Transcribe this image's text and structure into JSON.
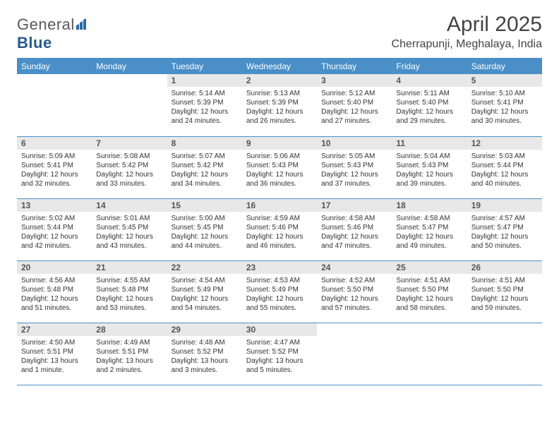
{
  "logo": {
    "text1": "General",
    "text2": "Blue"
  },
  "title": "April 2025",
  "location": "Cherrapunji, Meghalaya, India",
  "colors": {
    "accent": "#4a8fc7",
    "header_stripe": "#e8e8e8",
    "text": "#333333",
    "logo_gray": "#5a5a5a",
    "logo_blue": "#2a5a8a"
  },
  "weekdays": [
    "Sunday",
    "Monday",
    "Tuesday",
    "Wednesday",
    "Thursday",
    "Friday",
    "Saturday"
  ],
  "weeks": [
    [
      {
        "empty": true
      },
      {
        "empty": true
      },
      {
        "num": "1",
        "sunrise": "Sunrise: 5:14 AM",
        "sunset": "Sunset: 5:39 PM",
        "daylight": "Daylight: 12 hours and 24 minutes."
      },
      {
        "num": "2",
        "sunrise": "Sunrise: 5:13 AM",
        "sunset": "Sunset: 5:39 PM",
        "daylight": "Daylight: 12 hours and 26 minutes."
      },
      {
        "num": "3",
        "sunrise": "Sunrise: 5:12 AM",
        "sunset": "Sunset: 5:40 PM",
        "daylight": "Daylight: 12 hours and 27 minutes."
      },
      {
        "num": "4",
        "sunrise": "Sunrise: 5:11 AM",
        "sunset": "Sunset: 5:40 PM",
        "daylight": "Daylight: 12 hours and 29 minutes."
      },
      {
        "num": "5",
        "sunrise": "Sunrise: 5:10 AM",
        "sunset": "Sunset: 5:41 PM",
        "daylight": "Daylight: 12 hours and 30 minutes."
      }
    ],
    [
      {
        "num": "6",
        "sunrise": "Sunrise: 5:09 AM",
        "sunset": "Sunset: 5:41 PM",
        "daylight": "Daylight: 12 hours and 32 minutes."
      },
      {
        "num": "7",
        "sunrise": "Sunrise: 5:08 AM",
        "sunset": "Sunset: 5:42 PM",
        "daylight": "Daylight: 12 hours and 33 minutes."
      },
      {
        "num": "8",
        "sunrise": "Sunrise: 5:07 AM",
        "sunset": "Sunset: 5:42 PM",
        "daylight": "Daylight: 12 hours and 34 minutes."
      },
      {
        "num": "9",
        "sunrise": "Sunrise: 5:06 AM",
        "sunset": "Sunset: 5:43 PM",
        "daylight": "Daylight: 12 hours and 36 minutes."
      },
      {
        "num": "10",
        "sunrise": "Sunrise: 5:05 AM",
        "sunset": "Sunset: 5:43 PM",
        "daylight": "Daylight: 12 hours and 37 minutes."
      },
      {
        "num": "11",
        "sunrise": "Sunrise: 5:04 AM",
        "sunset": "Sunset: 5:43 PM",
        "daylight": "Daylight: 12 hours and 39 minutes."
      },
      {
        "num": "12",
        "sunrise": "Sunrise: 5:03 AM",
        "sunset": "Sunset: 5:44 PM",
        "daylight": "Daylight: 12 hours and 40 minutes."
      }
    ],
    [
      {
        "num": "13",
        "sunrise": "Sunrise: 5:02 AM",
        "sunset": "Sunset: 5:44 PM",
        "daylight": "Daylight: 12 hours and 42 minutes."
      },
      {
        "num": "14",
        "sunrise": "Sunrise: 5:01 AM",
        "sunset": "Sunset: 5:45 PM",
        "daylight": "Daylight: 12 hours and 43 minutes."
      },
      {
        "num": "15",
        "sunrise": "Sunrise: 5:00 AM",
        "sunset": "Sunset: 5:45 PM",
        "daylight": "Daylight: 12 hours and 44 minutes."
      },
      {
        "num": "16",
        "sunrise": "Sunrise: 4:59 AM",
        "sunset": "Sunset: 5:46 PM",
        "daylight": "Daylight: 12 hours and 46 minutes."
      },
      {
        "num": "17",
        "sunrise": "Sunrise: 4:58 AM",
        "sunset": "Sunset: 5:46 PM",
        "daylight": "Daylight: 12 hours and 47 minutes."
      },
      {
        "num": "18",
        "sunrise": "Sunrise: 4:58 AM",
        "sunset": "Sunset: 5:47 PM",
        "daylight": "Daylight: 12 hours and 49 minutes."
      },
      {
        "num": "19",
        "sunrise": "Sunrise: 4:57 AM",
        "sunset": "Sunset: 5:47 PM",
        "daylight": "Daylight: 12 hours and 50 minutes."
      }
    ],
    [
      {
        "num": "20",
        "sunrise": "Sunrise: 4:56 AM",
        "sunset": "Sunset: 5:48 PM",
        "daylight": "Daylight: 12 hours and 51 minutes."
      },
      {
        "num": "21",
        "sunrise": "Sunrise: 4:55 AM",
        "sunset": "Sunset: 5:48 PM",
        "daylight": "Daylight: 12 hours and 53 minutes."
      },
      {
        "num": "22",
        "sunrise": "Sunrise: 4:54 AM",
        "sunset": "Sunset: 5:49 PM",
        "daylight": "Daylight: 12 hours and 54 minutes."
      },
      {
        "num": "23",
        "sunrise": "Sunrise: 4:53 AM",
        "sunset": "Sunset: 5:49 PM",
        "daylight": "Daylight: 12 hours and 55 minutes."
      },
      {
        "num": "24",
        "sunrise": "Sunrise: 4:52 AM",
        "sunset": "Sunset: 5:50 PM",
        "daylight": "Daylight: 12 hours and 57 minutes."
      },
      {
        "num": "25",
        "sunrise": "Sunrise: 4:51 AM",
        "sunset": "Sunset: 5:50 PM",
        "daylight": "Daylight: 12 hours and 58 minutes."
      },
      {
        "num": "26",
        "sunrise": "Sunrise: 4:51 AM",
        "sunset": "Sunset: 5:50 PM",
        "daylight": "Daylight: 12 hours and 59 minutes."
      }
    ],
    [
      {
        "num": "27",
        "sunrise": "Sunrise: 4:50 AM",
        "sunset": "Sunset: 5:51 PM",
        "daylight": "Daylight: 13 hours and 1 minute."
      },
      {
        "num": "28",
        "sunrise": "Sunrise: 4:49 AM",
        "sunset": "Sunset: 5:51 PM",
        "daylight": "Daylight: 13 hours and 2 minutes."
      },
      {
        "num": "29",
        "sunrise": "Sunrise: 4:48 AM",
        "sunset": "Sunset: 5:52 PM",
        "daylight": "Daylight: 13 hours and 3 minutes."
      },
      {
        "num": "30",
        "sunrise": "Sunrise: 4:47 AM",
        "sunset": "Sunset: 5:52 PM",
        "daylight": "Daylight: 13 hours and 5 minutes."
      },
      {
        "empty": true
      },
      {
        "empty": true
      },
      {
        "empty": true
      }
    ]
  ]
}
